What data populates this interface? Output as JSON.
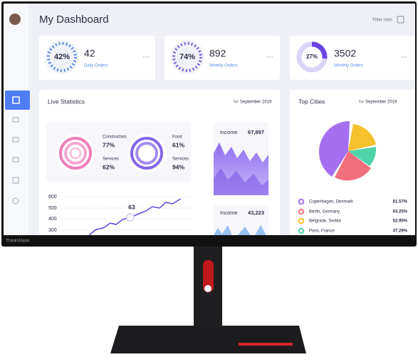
{
  "header": {
    "title": "My Dashboard",
    "filter": "Filter stats"
  },
  "stats": [
    {
      "percent": "42%",
      "value": "42",
      "label": "Daily Orders"
    },
    {
      "percent": "74%",
      "value": "892",
      "label": "Weekly Orders"
    },
    {
      "percent": "27%",
      "value": "3502",
      "label": "Monthly Orders"
    }
  ],
  "live": {
    "title": "Live Statistics",
    "for": "for",
    "period": "September 2019",
    "rings": [
      {
        "name": "Construction",
        "value": "77%"
      },
      {
        "name": "Services",
        "value": "62%"
      },
      {
        "name": "Food",
        "value": "61%"
      },
      {
        "name": "Services",
        "value": "94%"
      }
    ],
    "income": [
      {
        "label": "Income",
        "value": "67,897"
      },
      {
        "label": "Income",
        "value": "43,223"
      }
    ],
    "axis": [
      "600",
      "500",
      "400",
      "300"
    ],
    "point_label": "63"
  },
  "cities": {
    "title": "Top Cities",
    "for": "for",
    "period": "September 2019",
    "rows": [
      {
        "name": "Copenhagen, Denmark",
        "value": "81.57%"
      },
      {
        "name": "Berlin, Germany",
        "value": "63.25%"
      },
      {
        "name": "Belgrade, Serbia",
        "value": "52.95%"
      },
      {
        "name": "Paris, France",
        "value": "47.29%"
      }
    ]
  },
  "brand": "ThinkVision"
}
